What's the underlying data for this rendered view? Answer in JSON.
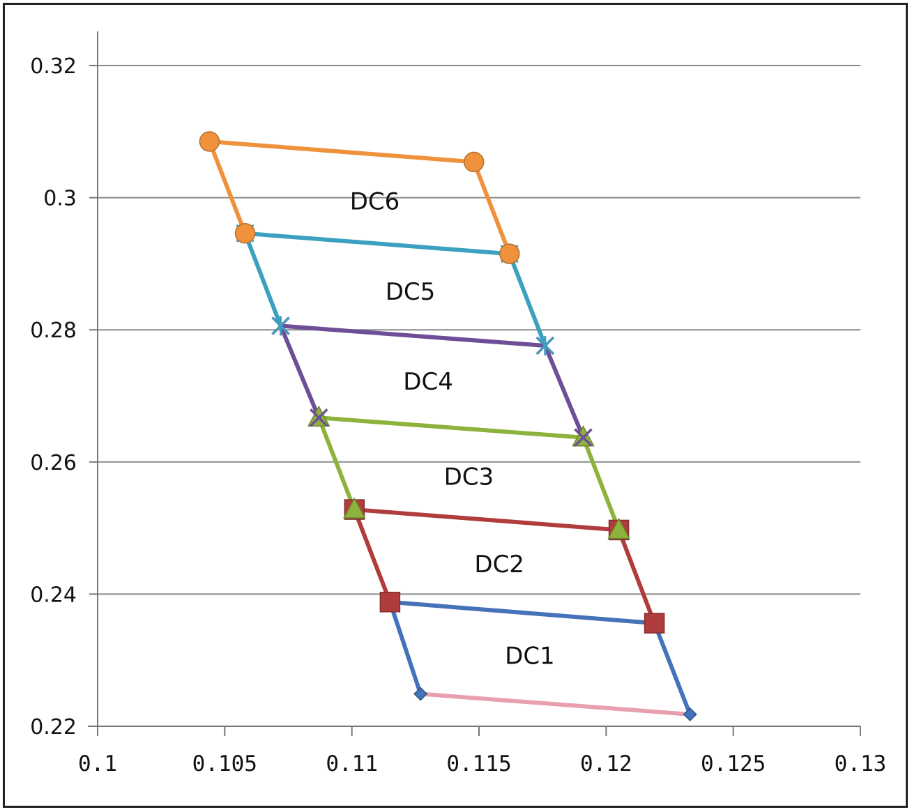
{
  "chart_data": {
    "type": "line",
    "title": "",
    "xlabel": "",
    "ylabel": "",
    "xlim": [
      0.1,
      0.13
    ],
    "ylim": [
      0.22,
      0.325
    ],
    "x_ticks": [
      "0.1",
      "0.105",
      "0.11",
      "0.115",
      "0.12",
      "0.125",
      "0.13"
    ],
    "y_ticks": [
      "0.22",
      "0.24",
      "0.26",
      "0.28",
      "0.3",
      "0.32"
    ],
    "x_tick_values": [
      0.1,
      0.105,
      0.11,
      0.115,
      0.12,
      0.125,
      0.13
    ],
    "y_tick_values": [
      0.22,
      0.24,
      0.26,
      0.28,
      0.3,
      0.32
    ],
    "grid": true,
    "legend": "none",
    "series": [
      {
        "color": "#e8a0b0",
        "marker": "none",
        "points": [
          [
            0.1127,
            0.2249
          ],
          [
            0.1233,
            0.2218
          ]
        ]
      },
      {
        "color": "#4572b8",
        "marker": "diamond",
        "points": [
          [
            0.1127,
            0.2249
          ],
          [
            0.1115,
            0.2388
          ],
          [
            0.1219,
            0.2356
          ],
          [
            0.1233,
            0.2218
          ]
        ]
      },
      {
        "color": "#b03c3c",
        "marker": "square",
        "points": [
          [
            0.1115,
            0.2388
          ],
          [
            0.1101,
            0.2528
          ],
          [
            0.1205,
            0.2497
          ],
          [
            0.1219,
            0.2356
          ]
        ]
      },
      {
        "color": "#8db33c",
        "marker": "triangle",
        "points": [
          [
            0.1101,
            0.2528
          ],
          [
            0.1087,
            0.2667
          ],
          [
            0.1191,
            0.2637
          ],
          [
            0.1205,
            0.2497
          ]
        ]
      },
      {
        "color": "#6e4e96",
        "marker": "x",
        "points": [
          [
            0.1087,
            0.2667
          ],
          [
            0.1072,
            0.2806
          ],
          [
            0.1176,
            0.2776
          ],
          [
            0.1191,
            0.2637
          ]
        ]
      },
      {
        "color": "#3ca0c0",
        "marker": "star",
        "points": [
          [
            0.1072,
            0.2806
          ],
          [
            0.1058,
            0.2946
          ],
          [
            0.1162,
            0.2915
          ],
          [
            0.1176,
            0.2776
          ]
        ]
      },
      {
        "color": "#f0923c",
        "marker": "circle",
        "points": [
          [
            0.1058,
            0.2946
          ],
          [
            0.1044,
            0.3085
          ],
          [
            0.1148,
            0.3054
          ],
          [
            0.1162,
            0.2915
          ]
        ]
      }
    ],
    "annotations": [
      {
        "text": "DC1",
        "x": 0.117,
        "y": 0.2307
      },
      {
        "text": "DC2",
        "x": 0.1158,
        "y": 0.2446
      },
      {
        "text": "DC3",
        "x": 0.1146,
        "y": 0.2578
      },
      {
        "text": "DC4",
        "x": 0.113,
        "y": 0.2722
      },
      {
        "text": "DC5",
        "x": 0.1123,
        "y": 0.2858
      },
      {
        "text": "DC6",
        "x": 0.1109,
        "y": 0.2995
      }
    ]
  }
}
